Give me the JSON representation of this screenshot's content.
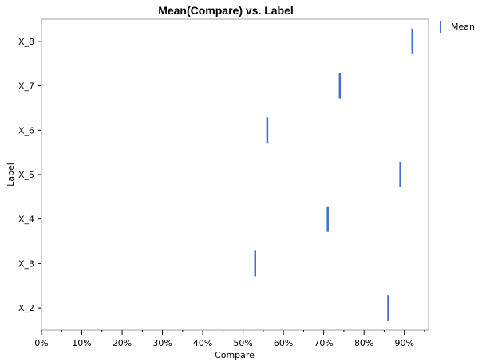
{
  "chart_data": {
    "type": "scatter",
    "marker": "vertical-bar",
    "title": "Mean(Compare) vs. Label",
    "xlabel": "Compare",
    "ylabel": "Label",
    "xlim": [
      0,
      0.96
    ],
    "x_ticks": [
      0,
      0.1,
      0.2,
      0.3,
      0.4,
      0.5,
      0.6,
      0.7,
      0.8,
      0.9
    ],
    "x_tick_labels": [
      "0%",
      "10%",
      "20%",
      "30%",
      "40%",
      "50%",
      "60%",
      "70%",
      "80%",
      "90%"
    ],
    "categories": [
      "X_2",
      "X_3",
      "X_4",
      "X_5",
      "X_6",
      "X_7",
      "X_8"
    ],
    "series": [
      {
        "name": "Mean",
        "color": "#3f6fd4",
        "values": [
          0.86,
          0.53,
          0.71,
          0.89,
          0.56,
          0.74,
          0.92
        ]
      }
    ],
    "grid": false,
    "legend": "top-right"
  }
}
